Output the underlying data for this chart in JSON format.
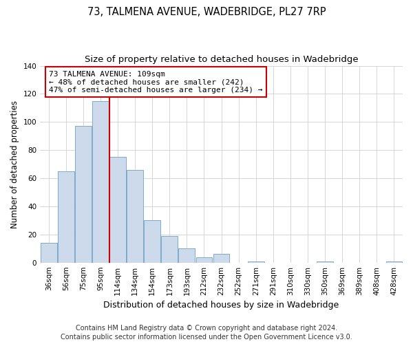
{
  "title": "73, TALMENA AVENUE, WADEBRIDGE, PL27 7RP",
  "subtitle": "Size of property relative to detached houses in Wadebridge",
  "xlabel": "Distribution of detached houses by size in Wadebridge",
  "ylabel": "Number of detached properties",
  "footer_line1": "Contains HM Land Registry data © Crown copyright and database right 2024.",
  "footer_line2": "Contains public sector information licensed under the Open Government Licence v3.0.",
  "bin_labels": [
    "36sqm",
    "56sqm",
    "75sqm",
    "95sqm",
    "114sqm",
    "134sqm",
    "154sqm",
    "173sqm",
    "193sqm",
    "212sqm",
    "232sqm",
    "252sqm",
    "271sqm",
    "291sqm",
    "310sqm",
    "330sqm",
    "350sqm",
    "369sqm",
    "389sqm",
    "408sqm",
    "428sqm"
  ],
  "bar_values": [
    14,
    65,
    97,
    115,
    75,
    66,
    30,
    19,
    10,
    4,
    6,
    0,
    1,
    0,
    0,
    0,
    1,
    0,
    0,
    0,
    1
  ],
  "bar_color": "#ccdaeb",
  "bar_edge_color": "#7aaacb",
  "marker_bin_index": 4,
  "marker_color": "#cc0000",
  "annotation_text": "73 TALMENA AVENUE: 109sqm\n← 48% of detached houses are smaller (242)\n47% of semi-detached houses are larger (234) →",
  "annotation_box_color": "#ffffff",
  "annotation_box_edge_color": "#cc0000",
  "ylim": [
    0,
    140
  ],
  "yticks": [
    0,
    20,
    40,
    60,
    80,
    100,
    120,
    140
  ],
  "grid_color": "#d0d0d0",
  "background_color": "#ffffff",
  "title_fontsize": 10.5,
  "subtitle_fontsize": 9.5,
  "xlabel_fontsize": 9,
  "ylabel_fontsize": 8.5,
  "tick_fontsize": 7.5,
  "annotation_fontsize": 8,
  "footer_fontsize": 7
}
